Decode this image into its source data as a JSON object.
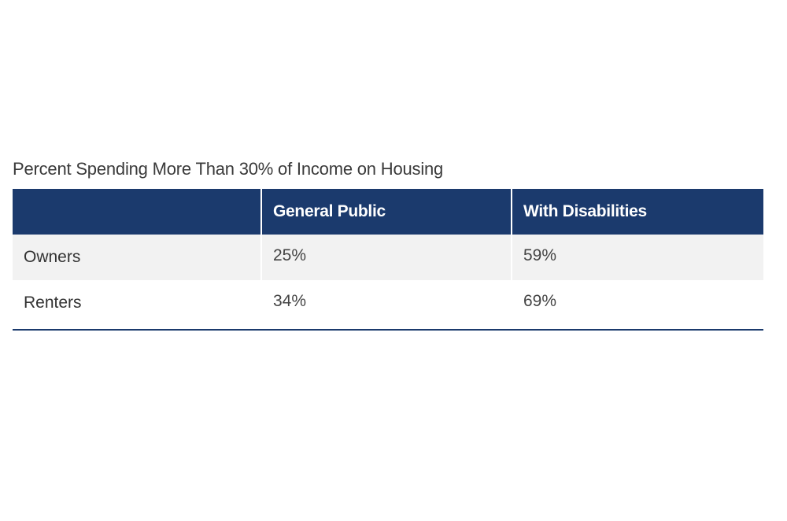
{
  "chart_data": {
    "type": "table",
    "title": "Percent Spending More Than 30% of Income on Housing",
    "columns": [
      "",
      "General Public",
      "With Disabilities"
    ],
    "rows": [
      {
        "label": "Owners",
        "values": [
          "25%",
          "59%"
        ]
      },
      {
        "label": "Renters",
        "values": [
          "34%",
          "69%"
        ]
      }
    ],
    "colors": {
      "header_bg": "#1b3a6d",
      "header_text": "#ffffff",
      "row_shade": "#f2f2f2",
      "rule": "#1b3a6d"
    }
  }
}
